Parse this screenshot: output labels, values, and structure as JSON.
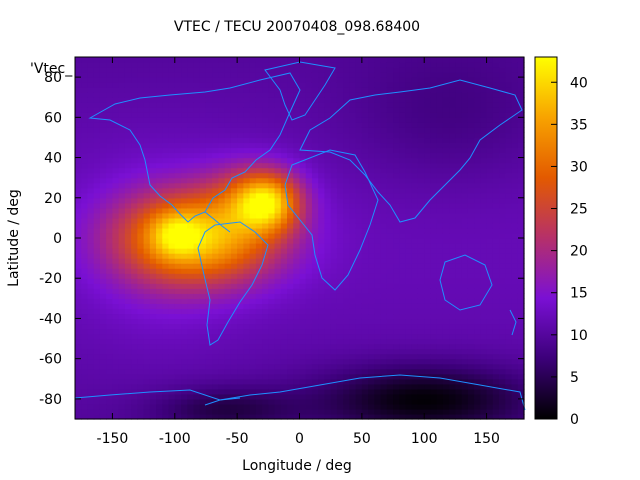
{
  "chart_data": {
    "type": "heatmap",
    "title": "VTEC / TECU 20070408_098.68400",
    "xlabel": "Longitude / deg",
    "ylabel": "Latitude / deg",
    "xlim": [
      -180,
      180
    ],
    "ylim": [
      -90,
      90
    ],
    "x_ticks": [
      -150,
      -100,
      -50,
      0,
      50,
      100,
      150
    ],
    "y_ticks": [
      -80,
      -60,
      -40,
      -20,
      0,
      20,
      40,
      60,
      80
    ],
    "legend_key": "'Vtec_",
    "colorbar": {
      "range": [
        0,
        43
      ],
      "ticks": [
        0,
        5,
        10,
        15,
        20,
        25,
        30,
        35,
        40
      ],
      "palette": [
        "#000000",
        "#3c0079",
        "#7a10d4",
        "#b6306a",
        "#e35a00",
        "#f8a300",
        "#ffff00"
      ]
    },
    "grid": false,
    "background_tec": 10,
    "blobs": [
      {
        "lon": -80,
        "lat": 0,
        "sigma_lon": 45,
        "sigma_lat": 16,
        "amp": 25
      },
      {
        "lon": -25,
        "lat": 18,
        "sigma_lon": 18,
        "sigma_lat": 10,
        "amp": 20
      },
      {
        "lon": -100,
        "lat": 2,
        "sigma_lon": 14,
        "sigma_lat": 8,
        "amp": 8
      },
      {
        "lon": -40,
        "lat": 22,
        "sigma_lon": 25,
        "sigma_lat": 12,
        "amp": 8
      },
      {
        "lon": -110,
        "lat": -5,
        "sigma_lon": 40,
        "sigma_lat": 30,
        "amp": 3
      }
    ],
    "low_regions": [
      {
        "lon": 100,
        "lat": -80,
        "sigma_lon": 60,
        "sigma_lat": 12,
        "amp": -10
      },
      {
        "lon": -60,
        "lat": -85,
        "sigma_lon": 40,
        "sigma_lat": 8,
        "amp": -6
      },
      {
        "lon": 120,
        "lat": 60,
        "sigma_lon": 60,
        "sigma_lat": 25,
        "amp": -3
      }
    ]
  }
}
